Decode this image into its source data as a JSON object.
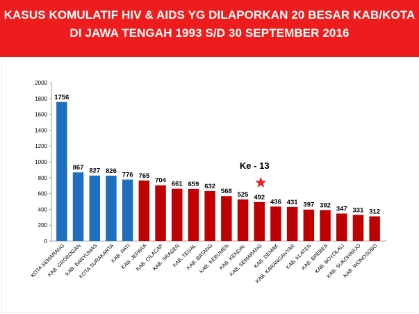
{
  "title": {
    "line1": "KASUS KOMULATIF HIV & AIDS YG DILAPORKAN 20 BESAR KAB/KOTA",
    "line2": "DI JAWA TENGAH 1993 S/D 30 SEPTEMBER 2016"
  },
  "colors": {
    "banner": "#ee1c1c",
    "kota_bar": "#1f6fc0",
    "kab_bar": "#c00000",
    "star": "#e8202a"
  },
  "annotation": {
    "text": "Ke - 13",
    "icon": "star-icon",
    "category": "KAB. SEMARANG"
  },
  "chart_data": {
    "type": "bar",
    "title": "",
    "xlabel": "",
    "ylabel": "",
    "ylim": [
      0,
      2000
    ],
    "yticks": [
      0,
      200,
      400,
      600,
      800,
      1000,
      1200,
      1400,
      1600,
      1800,
      2000
    ],
    "grid": false,
    "legend": "none",
    "categories": [
      "KOTA SEMARANG",
      "KAB. GROBOGAN",
      "KAB. BANYUMAS",
      "KOTA SURAKARTA",
      "KAB. PATI",
      "KAB. JEPARA",
      "KAB. CILACAP",
      "KAB. SRAGEN",
      "KAB. TEGAL",
      "KAB. BATANG",
      "KAB. KEBUMEN",
      "KAB. KENDAL",
      "KAB. SEMARANG",
      "KAB. DEMAK",
      "KAB. KARANGANYAR",
      "KAB. KLATEN",
      "KAB. BREBES",
      "KAB. BOYOLALI",
      "KAB. SUKOHARJO",
      "KAB. WONOSOBO"
    ],
    "values": [
      1756,
      867,
      827,
      826,
      776,
      765,
      704,
      661,
      659,
      632,
      568,
      525,
      492,
      436,
      431,
      397,
      392,
      347,
      331,
      312
    ],
    "bar_colors": [
      "#1f6fc0",
      "#1f6fc0",
      "#1f6fc0",
      "#1f6fc0",
      "#1f6fc0",
      "#c00000",
      "#c00000",
      "#c00000",
      "#c00000",
      "#c00000",
      "#c00000",
      "#c00000",
      "#c00000",
      "#c00000",
      "#c00000",
      "#c00000",
      "#c00000",
      "#c00000",
      "#c00000",
      "#c00000"
    ]
  }
}
